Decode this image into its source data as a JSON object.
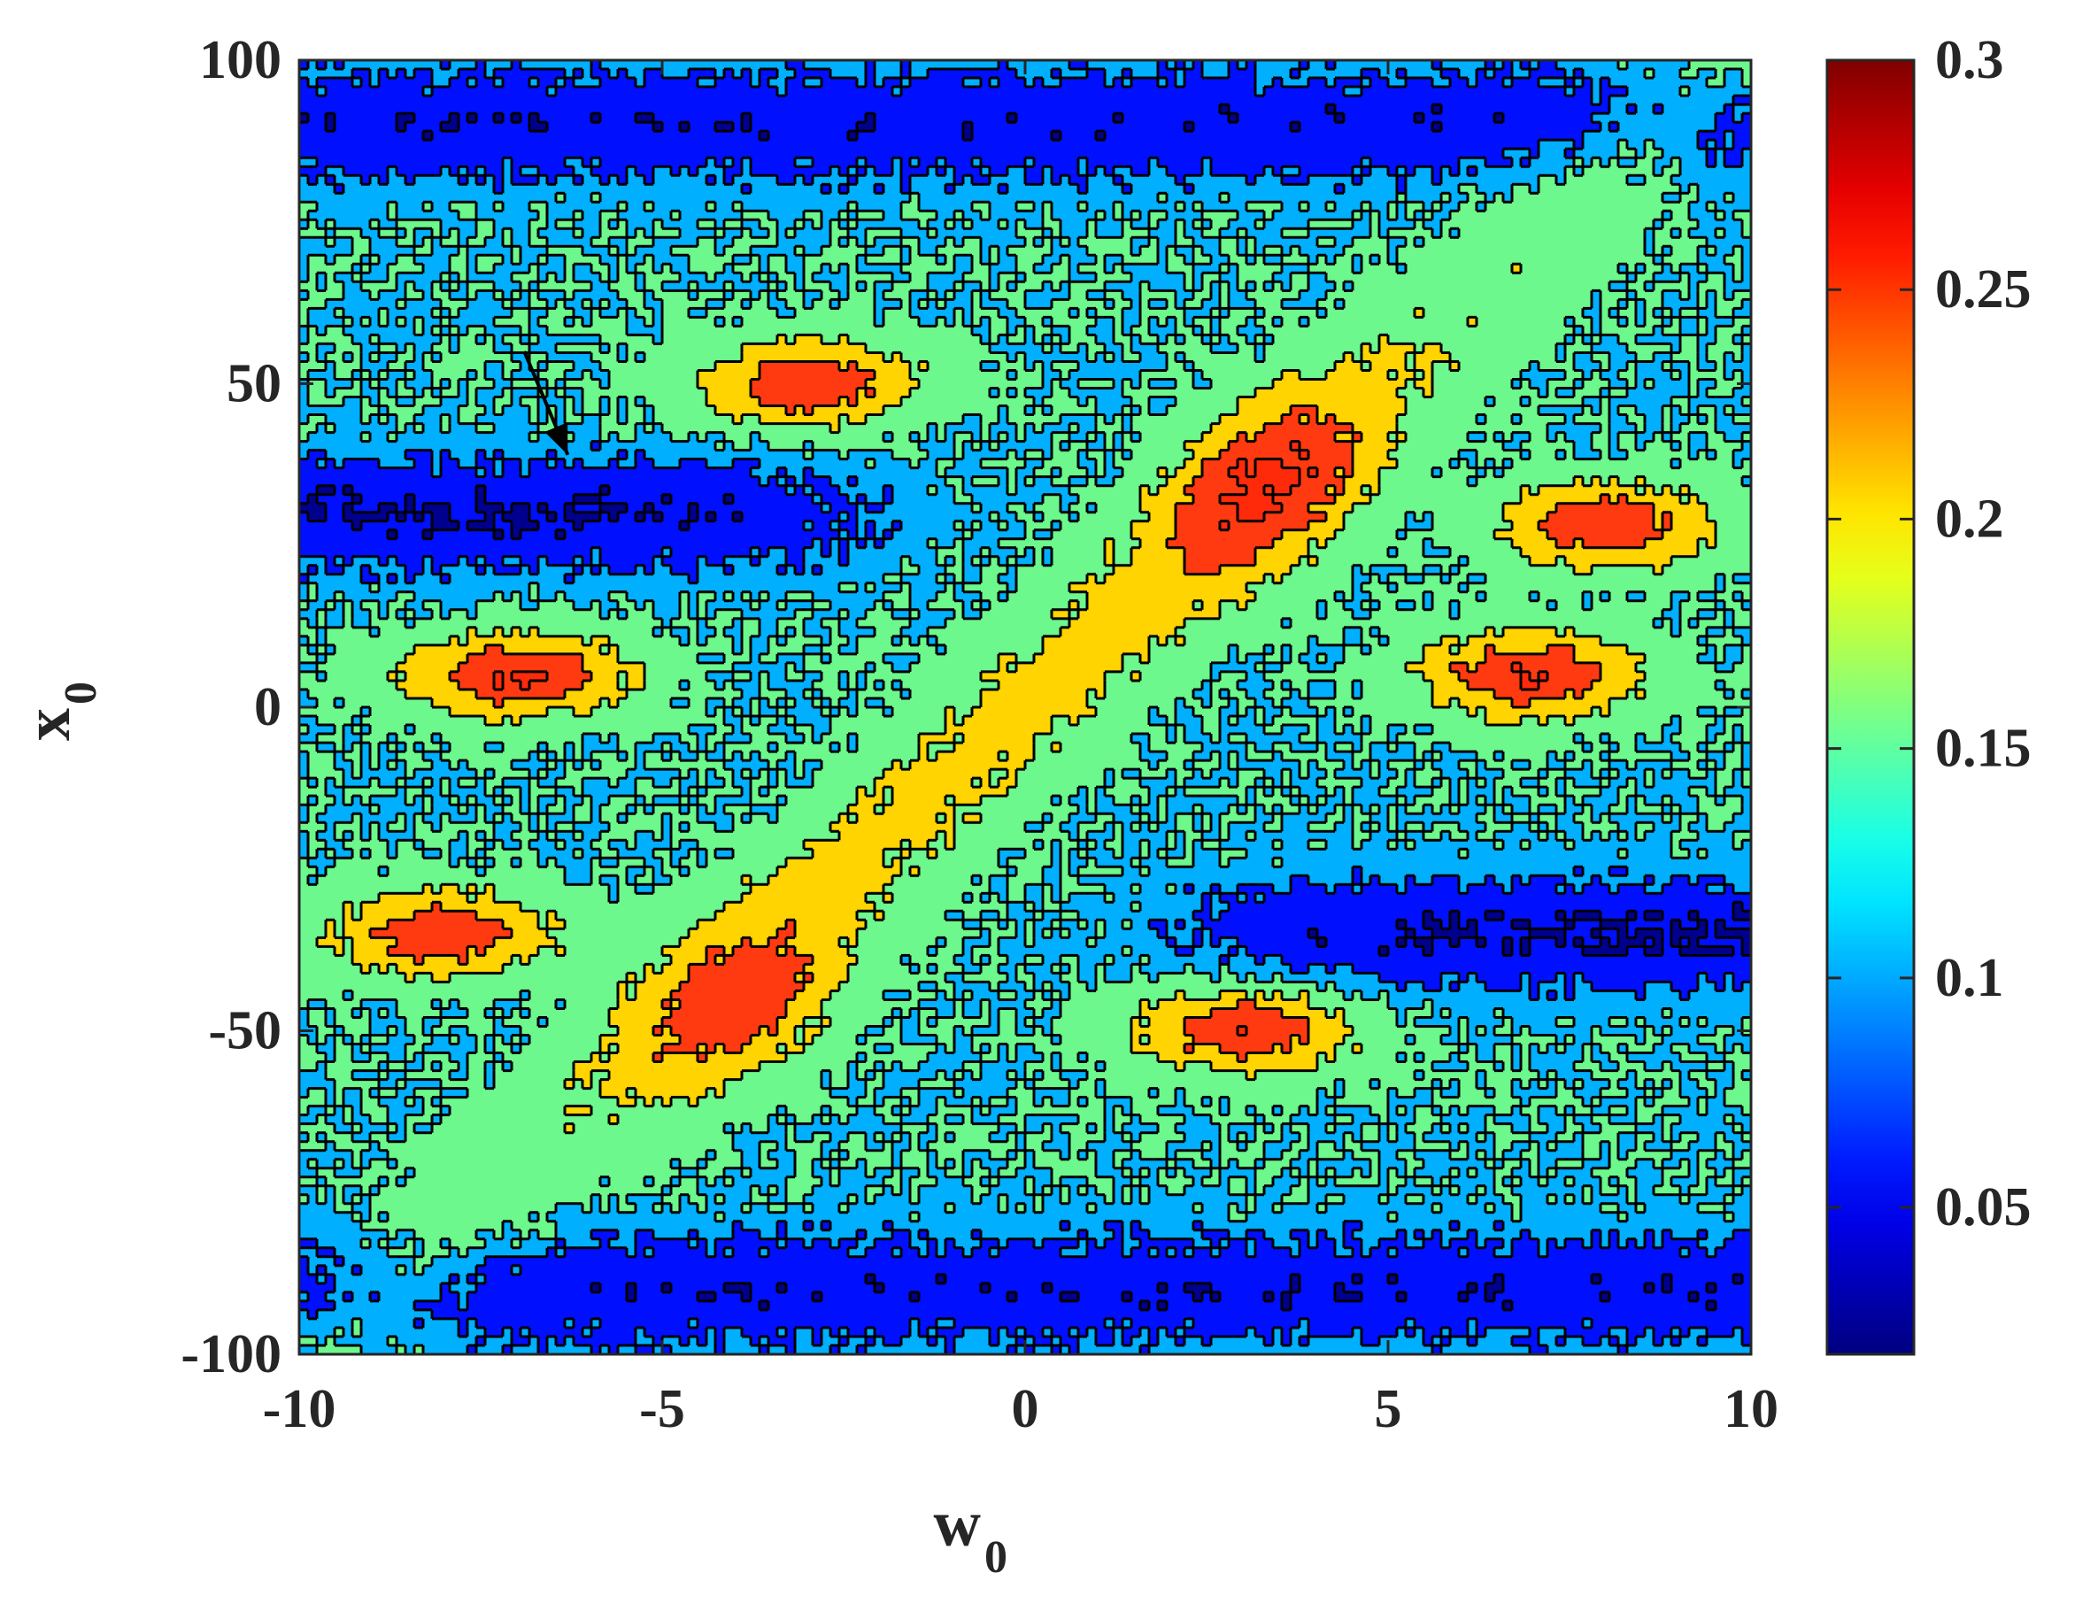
{
  "chart_data": {
    "type": "heatmap",
    "subtype": "filled-contour",
    "xlabel": "w",
    "xlabel_sub": "0",
    "ylabel": "x",
    "ylabel_sub": "0",
    "xlim": [
      -10,
      10
    ],
    "ylim": [
      -100,
      100
    ],
    "xticks": [
      -10,
      -5,
      0,
      5,
      10
    ],
    "xtick_labels": [
      "-10",
      "-5",
      "0",
      "5",
      "10"
    ],
    "yticks": [
      -100,
      -50,
      0,
      50,
      100
    ],
    "ytick_labels": [
      "-100",
      "-50",
      "0",
      "50",
      "100"
    ],
    "colorbar": {
      "colormap": "jet",
      "range": [
        0.018,
        0.3
      ],
      "ticks": [
        0.05,
        0.1,
        0.15,
        0.2,
        0.25,
        0.3
      ],
      "tick_labels": [
        "0.05",
        "0.1",
        "0.15",
        "0.2",
        "0.25",
        "0.3"
      ]
    },
    "contour_levels": [
      0.03,
      0.07,
      0.1,
      0.15,
      0.2,
      0.25
    ],
    "level_colors": [
      "#00008f",
      "#0010ff",
      "#00b0ff",
      "#6cf88c",
      "#ffd400",
      "#ff3a10",
      "#ff2a0a"
    ],
    "structures": {
      "diagonal_band": {
        "description": "high values along x0 ≈ 10·w0",
        "center_value": 0.17,
        "core_value": 0.26,
        "core_regions": [
          {
            "w0": -3.5,
            "x0": -50,
            "value": 0.265
          },
          {
            "w0": 3.2,
            "x0": 35,
            "value": 0.265
          }
        ]
      },
      "side_lobes": [
        {
          "w0": -7.0,
          "x0": 5,
          "value": 0.25
        },
        {
          "w0": 7.0,
          "x0": 5,
          "value": 0.25
        },
        {
          "w0": -8.0,
          "x0": -35,
          "value": 0.24
        },
        {
          "w0": -3.0,
          "x0": 50,
          "value": 0.24
        },
        {
          "w0": 8.0,
          "x0": 28,
          "value": 0.24
        },
        {
          "w0": 3.0,
          "x0": -50,
          "value": 0.24
        }
      ],
      "low_bands": [
        {
          "x0": 90,
          "value": 0.04
        },
        {
          "x0": -90,
          "value": 0.04
        },
        {
          "x0": 30,
          "side": "left",
          "value": 0.03
        },
        {
          "x0": -35,
          "side": "right",
          "value": 0.03
        }
      ],
      "background_value": 0.1
    },
    "annotations": [
      {
        "type": "arrow",
        "from": {
          "w0": -6.9,
          "x0": 55
        },
        "to": {
          "w0": -6.3,
          "x0": 39
        }
      }
    ]
  },
  "colors": {
    "axis": "#262626",
    "contour_line": "#000000"
  }
}
